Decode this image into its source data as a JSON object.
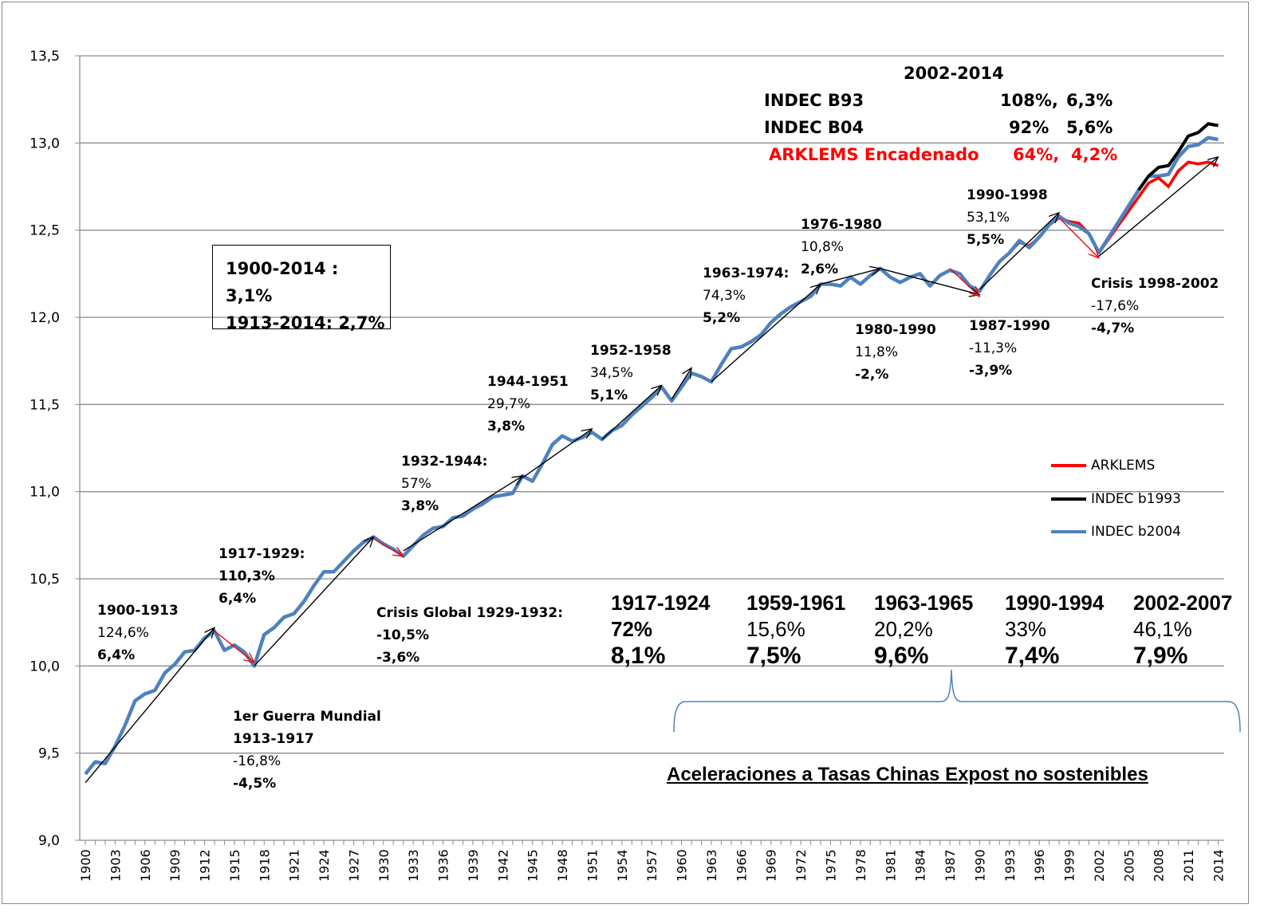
{
  "chart_data": {
    "type": "line",
    "title": "",
    "xlabel": "",
    "ylabel": "",
    "ylim": [
      9.0,
      13.5
    ],
    "yticks": [
      "9,0",
      "9,5",
      "10,0",
      "10,5",
      "11,0",
      "11,5",
      "12,0",
      "12,5",
      "13,0",
      "13,5"
    ],
    "xlim": [
      1900,
      2014
    ],
    "xticks": [
      "1900",
      "1903",
      "1906",
      "1909",
      "1912",
      "1915",
      "1918",
      "1921",
      "1924",
      "1927",
      "1930",
      "1933",
      "1936",
      "1939",
      "1942",
      "1945",
      "1948",
      "1951",
      "1954",
      "1957",
      "1960",
      "1963",
      "1966",
      "1969",
      "1972",
      "1975",
      "1978",
      "1981",
      "1984",
      "1987",
      "1990",
      "1993",
      "1996",
      "1999",
      "2002",
      "2005",
      "2008",
      "2011",
      "2014"
    ],
    "grid": "horizontal",
    "legend_placement": "right",
    "series": [
      {
        "name": "ARKLEMS",
        "color": "#ff0000",
        "x": [
          1987,
          1988,
          1989,
          1990,
          1991,
          1992,
          1993,
          1994,
          1995,
          1996,
          1997,
          1998,
          1999,
          2000,
          2001,
          2002,
          2003,
          2004,
          2005,
          2006,
          2007,
          2008,
          2009,
          2010,
          2011,
          2012,
          2013,
          2014
        ],
        "values": [
          12.27,
          12.25,
          12.18,
          12.15,
          12.24,
          12.32,
          12.37,
          12.43,
          12.41,
          12.46,
          12.53,
          12.57,
          12.55,
          12.54,
          12.48,
          12.37,
          12.45,
          12.53,
          12.61,
          12.69,
          12.77,
          12.8,
          12.75,
          12.84,
          12.89,
          12.88,
          12.89,
          12.87
        ]
      },
      {
        "name": "INDEC b1993",
        "color": "#000000",
        "x": [
          2002,
          2003,
          2004,
          2005,
          2006,
          2007,
          2008,
          2009,
          2010,
          2011,
          2012,
          2013,
          2014
        ],
        "values": [
          12.37,
          12.46,
          12.55,
          12.64,
          12.73,
          12.81,
          12.86,
          12.87,
          12.95,
          13.04,
          13.06,
          13.11,
          13.1
        ]
      },
      {
        "name": "INDEC b2004",
        "color": "#4f81bd",
        "x": [
          1900,
          1901,
          1902,
          1903,
          1904,
          1905,
          1906,
          1907,
          1908,
          1909,
          1910,
          1911,
          1912,
          1913,
          1914,
          1915,
          1916,
          1917,
          1918,
          1919,
          1920,
          1921,
          1922,
          1923,
          1924,
          1925,
          1926,
          1927,
          1928,
          1929,
          1930,
          1931,
          1932,
          1933,
          1934,
          1935,
          1936,
          1937,
          1938,
          1939,
          1940,
          1941,
          1942,
          1943,
          1944,
          1945,
          1946,
          1947,
          1948,
          1949,
          1950,
          1951,
          1952,
          1953,
          1954,
          1955,
          1956,
          1957,
          1958,
          1959,
          1960,
          1961,
          1962,
          1963,
          1964,
          1965,
          1966,
          1967,
          1968,
          1969,
          1970,
          1971,
          1972,
          1973,
          1974,
          1975,
          1976,
          1977,
          1978,
          1979,
          1980,
          1981,
          1982,
          1983,
          1984,
          1985,
          1986,
          1987,
          1988,
          1989,
          1990,
          1991,
          1992,
          1993,
          1994,
          1995,
          1996,
          1997,
          1998,
          1999,
          2000,
          2001,
          2002,
          2003,
          2004,
          2005,
          2006,
          2007,
          2008,
          2009,
          2010,
          2011,
          2012,
          2013,
          2014
        ],
        "values": [
          9.38,
          9.45,
          9.44,
          9.54,
          9.66,
          9.8,
          9.84,
          9.86,
          9.96,
          10.01,
          10.08,
          10.09,
          10.16,
          10.2,
          10.09,
          10.12,
          10.08,
          10.0,
          10.18,
          10.22,
          10.28,
          10.3,
          10.37,
          10.46,
          10.54,
          10.54,
          10.6,
          10.66,
          10.71,
          10.74,
          10.7,
          10.67,
          10.63,
          10.69,
          10.75,
          10.79,
          10.8,
          10.85,
          10.86,
          10.9,
          10.93,
          10.97,
          10.98,
          10.99,
          11.09,
          11.06,
          11.16,
          11.27,
          11.32,
          11.29,
          11.31,
          11.34,
          11.3,
          11.35,
          11.38,
          11.44,
          11.49,
          11.54,
          11.6,
          11.52,
          11.6,
          11.68,
          11.66,
          11.63,
          11.73,
          11.82,
          11.83,
          11.86,
          11.9,
          11.97,
          12.02,
          12.06,
          12.09,
          12.12,
          12.19,
          12.19,
          12.18,
          12.23,
          12.19,
          12.24,
          12.28,
          12.23,
          12.2,
          12.23,
          12.25,
          12.18,
          12.24,
          12.27,
          12.25,
          12.18,
          12.15,
          12.24,
          12.32,
          12.37,
          12.44,
          12.4,
          12.46,
          12.53,
          12.58,
          12.54,
          12.52,
          12.48,
          12.37,
          12.46,
          12.55,
          12.64,
          12.73,
          12.81,
          12.81,
          12.82,
          12.92,
          12.98,
          12.99,
          13.03,
          13.02
        ]
      }
    ],
    "arrows": [
      {
        "color": "#000000",
        "from": [
          1900,
          9.33
        ],
        "to": [
          1913,
          10.22
        ]
      },
      {
        "color": "#ff0000",
        "from": [
          1913,
          10.2
        ],
        "to": [
          1917,
          10.02
        ]
      },
      {
        "color": "#000000",
        "from": [
          1917,
          10.0
        ],
        "to": [
          1929,
          10.74
        ]
      },
      {
        "color": "#ff0000",
        "from": [
          1929,
          10.73
        ],
        "to": [
          1932,
          10.63
        ]
      },
      {
        "color": "#000000",
        "from": [
          1932,
          10.66
        ],
        "to": [
          1944,
          11.09
        ]
      },
      {
        "color": "#000000",
        "from": [
          1944,
          11.08
        ],
        "to": [
          1951,
          11.36
        ]
      },
      {
        "color": "#000000",
        "from": [
          1952,
          11.3
        ],
        "to": [
          1958,
          11.61
        ]
      },
      {
        "color": "#000000",
        "from": [
          1959,
          11.53
        ],
        "to": [
          1961,
          11.71
        ]
      },
      {
        "color": "#000000",
        "from": [
          1963,
          11.63
        ],
        "to": [
          1974,
          12.19
        ]
      },
      {
        "color": "#000000",
        "from": [
          1974,
          12.19
        ],
        "to": [
          1980,
          12.28
        ]
      },
      {
        "color": "#000000",
        "from": [
          1980,
          12.28
        ],
        "to": [
          1990,
          12.13
        ]
      },
      {
        "color": "#ff0000",
        "from": [
          1987,
          12.28
        ],
        "to": [
          1990,
          12.12
        ]
      },
      {
        "color": "#000000",
        "from": [
          1990,
          12.16
        ],
        "to": [
          1998,
          12.6
        ]
      },
      {
        "color": "#ff0000",
        "from": [
          1998,
          12.57
        ],
        "to": [
          2002,
          12.34
        ]
      },
      {
        "color": "#000000",
        "from": [
          2002,
          12.35
        ],
        "to": [
          2014,
          12.92
        ]
      }
    ],
    "annotations": {
      "a1900": [
        "1900-1913",
        "124,6%",
        "6,4%"
      ],
      "a1913": [
        "1er Guerra Mundial",
        "1913-1917",
        "-16,8%",
        "-4,5%"
      ],
      "a1917": [
        "1917-1929:",
        "110,3%",
        "6,4%"
      ],
      "a1929": [
        "Crisis Global 1929-1932:",
        "-10,5%",
        "-3,6%"
      ],
      "a1932": [
        "1932-1944:",
        "57%",
        "3,8%"
      ],
      "a1944": [
        "1944-1951",
        "29,7%",
        "3,8%"
      ],
      "a1952": [
        "1952-1958",
        "34,5%",
        "5,1%"
      ],
      "a1963": [
        "1963-1974:",
        "74,3%",
        "5,2%"
      ],
      "a1976": [
        "1976-1980",
        "10,8%",
        "2,6%"
      ],
      "a1980": [
        "1980-1990",
        "11,8%",
        "-2,%"
      ],
      "a1987": [
        "1987-1990",
        "-11,3%",
        "-3,9%"
      ],
      "a1990": [
        "1990-1998",
        "53,1%",
        "5,5%"
      ],
      "a1998": [
        "Crisis  1998-2002",
        "-17,6%",
        "-4,7%"
      ]
    },
    "summary_box": [
      "1900-2014 : 3,1%",
      "1913-2014:  2,7%"
    ],
    "top_summary": {
      "period": "2002-2014",
      "rows": [
        {
          "label": "INDEC B93",
          "pct": "108%,",
          "rate": "6,3%",
          "color": "#000000"
        },
        {
          "label": "INDEC B04",
          "pct": "92%",
          "rate": "5,6%",
          "color": "#000000"
        },
        {
          "label": "ARKLEMS Encadenado",
          "pct": "64%,",
          "rate": "4,2%",
          "color": "#ff0000"
        }
      ]
    },
    "accelerations": [
      {
        "period": "1917-1924",
        "pct": "72%",
        "rate": "8,1%"
      },
      {
        "period": "1959-1961",
        "pct": "15,6%",
        "rate": "7,5%"
      },
      {
        "period": "1963-1965",
        "pct": "20,2%",
        "rate": "9,6%"
      },
      {
        "period": "1990-1994",
        "pct": "33%",
        "rate": "7,4%"
      },
      {
        "period": "2002-2007",
        "pct": "46,1%",
        "rate": "7,9%"
      }
    ],
    "footnote": "Aceleraciones a Tasas Chinas Expost no sostenibles"
  }
}
